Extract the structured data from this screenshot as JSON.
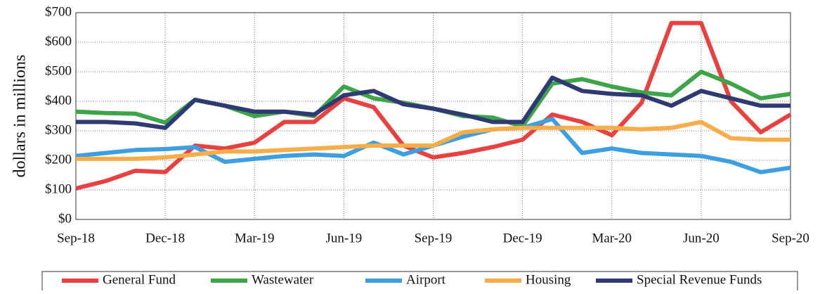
{
  "chart_data": {
    "type": "line",
    "y_label": "dollars in millions",
    "categories": [
      "Sep-18",
      null,
      null,
      "Dec-18",
      null,
      null,
      "Mar-19",
      null,
      null,
      "Jun-19",
      null,
      null,
      "Sep-19",
      null,
      null,
      "Dec-19",
      null,
      null,
      "Mar-20",
      null,
      null,
      "Jun-20",
      null,
      null,
      "Sep-20"
    ],
    "series": [
      {
        "name": "General Fund",
        "color": "#e8413f",
        "values": [
          105,
          130,
          165,
          160,
          250,
          240,
          260,
          330,
          330,
          410,
          380,
          250,
          210,
          225,
          245,
          270,
          355,
          330,
          285,
          395,
          665,
          665,
          400,
          295,
          355
        ]
      },
      {
        "name": "Wastewater",
        "color": "#3da44a",
        "values": [
          365,
          360,
          358,
          328,
          405,
          385,
          350,
          365,
          350,
          450,
          410,
          395,
          375,
          350,
          345,
          315,
          460,
          475,
          450,
          430,
          420,
          500,
          460,
          410,
          425
        ]
      },
      {
        "name": "Airport",
        "color": "#3d9fe0",
        "values": [
          215,
          225,
          235,
          238,
          245,
          195,
          205,
          215,
          220,
          215,
          260,
          220,
          250,
          280,
          305,
          310,
          340,
          225,
          240,
          225,
          220,
          215,
          195,
          160,
          175
        ]
      },
      {
        "name": "Housing",
        "color": "#f6ad4a",
        "values": [
          205,
          205,
          205,
          210,
          220,
          230,
          230,
          235,
          240,
          245,
          250,
          250,
          250,
          295,
          305,
          310,
          310,
          310,
          310,
          305,
          310,
          330,
          275,
          270,
          270
        ]
      },
      {
        "name": "Special Revenue Funds",
        "color": "#2f3a73",
        "values": [
          330,
          330,
          325,
          310,
          405,
          385,
          365,
          365,
          355,
          420,
          435,
          390,
          375,
          355,
          330,
          330,
          480,
          435,
          425,
          420,
          385,
          435,
          410,
          385,
          385
        ]
      }
    ],
    "ylim": [
      0,
      700
    ],
    "yticks": [
      {
        "value": 0,
        "label": "$0"
      },
      {
        "value": 100,
        "label": "$100"
      },
      {
        "value": 200,
        "label": "$200"
      },
      {
        "value": 300,
        "label": "$300"
      },
      {
        "value": 400,
        "label": "$400"
      },
      {
        "value": 500,
        "label": "$500"
      },
      {
        "value": 600,
        "label": "$600"
      },
      {
        "value": 700,
        "label": "$700"
      }
    ],
    "grid": true,
    "legend": "bottom"
  }
}
